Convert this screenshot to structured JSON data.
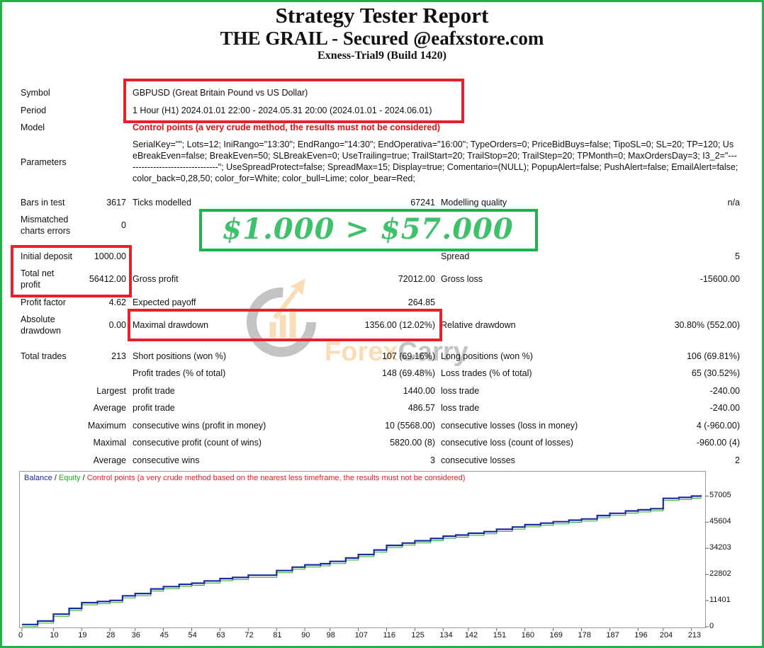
{
  "header": {
    "title": "Strategy Tester Report",
    "subtitle": "THE GRAIL - Secured @eafxstore.com",
    "server": "Exness-Trial9 (Build 1420)"
  },
  "info": {
    "symbol_label": "Symbol",
    "symbol_value": "GBPUSD (Great Britain Pound vs US Dollar)",
    "period_label": "Period",
    "period_value": "1 Hour (H1) 2024.01.01 22:00 - 2024.05.31 20:00 (2024.01.01 - 2024.06.01)",
    "model_label": "Model",
    "model_value": "Control points (a very crude method, the results must not be considered)",
    "parameters_label": "Parameters",
    "parameters_value": "SerialKey=\"\"; Lots=12; IniRango=\"13:30\"; EndRango=\"14:30\"; EndOperativa=\"16:00\"; TypeOrders=0; PriceBidBuys=false; TipoSL=0; SL=20; TP=120; UseBreakEven=false; BreakEven=50; SLBreakEven=0; UseTrailing=true; TrailStart=20; TrailStop=20; TrailStep=20; TPMonth=0; MaxOrdersDay=3; I3_2=\"--------------------------------\"; UseSpreadProtect=false; SpreadMax=15; Display=true; Comentario=(NULL); PopupAlert=false; PushAlert=false; EmailAlert=false; color_back=0,28,50; color_for=White; color_bull=Lime; color_bear=Red;"
  },
  "stats": {
    "bars_label": "Bars in test",
    "bars_value": "3617",
    "ticks_label": "Ticks modelled",
    "ticks_value": "67241",
    "quality_label": "Modelling quality",
    "quality_value": "n/a",
    "mismatch_label_1": "Mismatched",
    "mismatch_label_2": "charts errors",
    "mismatch_value": "0",
    "deposit_label": "Initial deposit",
    "deposit_value": "1000.00",
    "spread_label": "Spread",
    "spread_value": "5",
    "netprofit_label_1": "Total net",
    "netprofit_label_2": "profit",
    "netprofit_value": "56412.00",
    "grossprofit_label": "Gross profit",
    "grossprofit_value": "72012.00",
    "grossloss_label": "Gross loss",
    "grossloss_value": "-15600.00",
    "pf_label": "Profit factor",
    "pf_value": "4.62",
    "payoff_label": "Expected payoff",
    "payoff_value": "264.85",
    "absdd_label_1": "Absolute",
    "absdd_label_2": "drawdown",
    "absdd_value": "0.00",
    "maxdd_label": "Maximal drawdown",
    "maxdd_value": "1356.00 (12.02%)",
    "reldd_label": "Relative drawdown",
    "reldd_value": "30.80% (552.00)",
    "trades_label": "Total trades",
    "trades_value": "213",
    "short_label": "Short positions (won %)",
    "short_value": "107 (69.16%)",
    "long_label": "Long positions (won %)",
    "long_value": "106 (69.81%)",
    "profittrades_label": "Profit trades (% of total)",
    "profittrades_value": "148 (69.48%)",
    "losstrades_label": "Loss trades (% of total)",
    "losstrades_value": "65 (30.52%)",
    "largest_label": "Largest",
    "largest_profit_label": "profit trade",
    "largest_profit_value": "1440.00",
    "largest_loss_label": "loss trade",
    "largest_loss_value": "-240.00",
    "average_label": "Average",
    "average_profit_label": "profit trade",
    "average_profit_value": "486.57",
    "average_loss_label": "loss trade",
    "average_loss_value": "-240.00",
    "maximum_label": "Maximum",
    "max_conswins_label": "consecutive wins (profit in money)",
    "max_conswins_value": "10 (5568.00)",
    "max_conslosses_label": "consecutive losses (loss in money)",
    "max_conslosses_value": "4 (-960.00)",
    "maximal_label": "Maximal",
    "maximal_consprofit_label": "consecutive profit (count of wins)",
    "maximal_consprofit_value": "5820.00 (8)",
    "maximal_consloss_label": "consecutive loss (count of losses)",
    "maximal_consloss_value": "-960.00 (4)",
    "avg_label": "Average",
    "avg_conswins_label": "consecutive wins",
    "avg_conswins_value": "3",
    "avg_conslosses_label": "consecutive losses",
    "avg_conslosses_value": "2"
  },
  "banner": {
    "text": "$1.000 > $57.000"
  },
  "watermark": {
    "text_a": "Forex",
    "text_b": "Carry"
  },
  "colors": {
    "balance": "#1a2aa0",
    "equity": "#22aa22",
    "red": "#e8202a",
    "green": "#22b14c"
  },
  "chart_data": {
    "type": "line",
    "legend": {
      "balance": "Balance",
      "sep1": " / ",
      "equity": "Equity",
      "sep2": " / ",
      "note": "Control points (a very crude method based on the nearest less timeframe, the results must not be considered)"
    },
    "y_ticks": [
      "57005",
      "45604",
      "34203",
      "22802",
      "11401",
      "0"
    ],
    "x_ticks": [
      "0",
      "10",
      "19",
      "28",
      "36",
      "45",
      "54",
      "63",
      "72",
      "81",
      "90",
      "98",
      "107",
      "116",
      "125",
      "134",
      "142",
      "151",
      "160",
      "169",
      "178",
      "187",
      "196",
      "204",
      "213"
    ],
    "ylim": [
      0,
      59000
    ],
    "xlim": [
      0,
      216
    ],
    "series": [
      {
        "name": "Balance",
        "x": [
          0,
          5,
          10,
          15,
          19,
          24,
          28,
          32,
          36,
          41,
          45,
          50,
          54,
          58,
          63,
          67,
          72,
          76,
          81,
          86,
          90,
          95,
          98,
          103,
          107,
          112,
          116,
          121,
          125,
          130,
          134,
          138,
          142,
          147,
          151,
          156,
          160,
          165,
          169,
          174,
          178,
          183,
          187,
          192,
          196,
          200,
          204,
          209,
          213,
          216
        ],
        "values": [
          1000,
          2500,
          5500,
          8000,
          10500,
          11000,
          11500,
          13500,
          14500,
          16500,
          17500,
          18500,
          19000,
          20000,
          21000,
          21500,
          22500,
          22500,
          24500,
          26000,
          27000,
          27500,
          28500,
          30000,
          31500,
          33500,
          35500,
          36500,
          37500,
          38500,
          39500,
          40000,
          40800,
          41500,
          42500,
          43500,
          44500,
          45200,
          45800,
          46500,
          47000,
          48500,
          49500,
          50500,
          51000,
          51500,
          56000,
          56400,
          57000,
          57400
        ]
      }
    ]
  }
}
